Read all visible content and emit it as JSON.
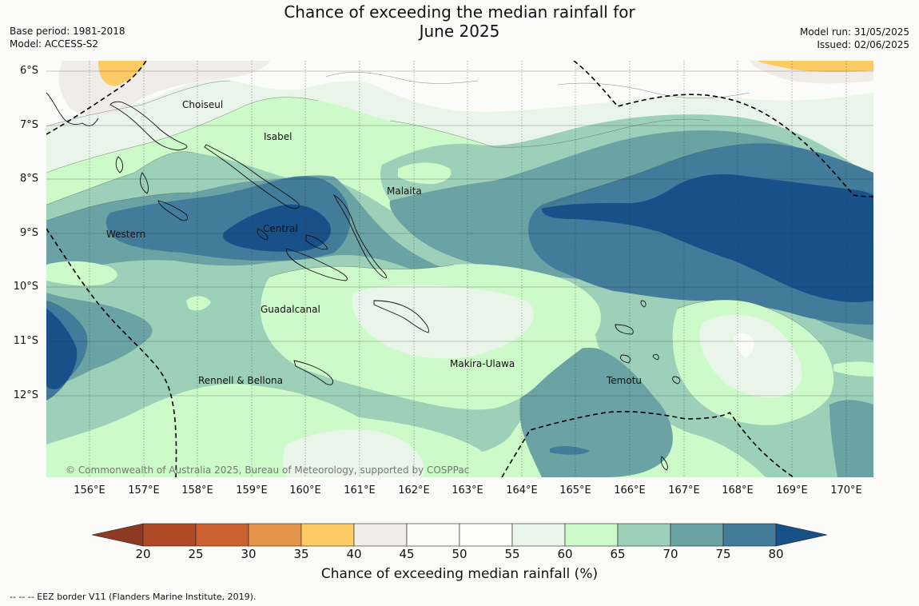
{
  "title": {
    "line1": "Chance of exceeding the median rainfall for",
    "line2": "June 2025"
  },
  "meta_left": {
    "base_period": "Base period: 1981-2018",
    "model": "Model: ACCESS-S2"
  },
  "meta_right": {
    "model_run": "Model run: 31/05/2025",
    "issued": "Issued: 02/06/2025"
  },
  "map": {
    "latitude_labels": [
      "6°S",
      "7°S",
      "8°S",
      "9°S",
      "10°S",
      "11°S",
      "12°S"
    ],
    "longitude_labels": [
      "156°E",
      "157°E",
      "158°E",
      "159°E",
      "160°E",
      "161°E",
      "162°E",
      "163°E",
      "164°E",
      "165°E",
      "166°E",
      "167°E",
      "168°E",
      "169°E",
      "170°E"
    ],
    "places": [
      "Choiseul",
      "Isabel",
      "Malaita",
      "Western",
      "Central",
      "Guadalcanal",
      "Makira-Ulawa",
      "Rennell & Bellona",
      "Temotu"
    ],
    "copyright": "© Commonwealth of Australia 2025, Bureau of Meteorology, supported by COSPPac"
  },
  "legend": {
    "title": "Chance of exceeding median rainfall (%)",
    "ticks": [
      "20",
      "25",
      "30",
      "35",
      "40",
      "45",
      "50",
      "55",
      "60",
      "65",
      "70",
      "75",
      "80"
    ],
    "colors": {
      "below_20": "#8e3a22",
      "c20_25": "#b04a26",
      "c25_30": "#cc6230",
      "c30_35": "#e49448",
      "c35_40": "#fdcb63",
      "c40_45": "#f0ede8",
      "c45_50": "#fbfcfa",
      "c50_55": "#fdfefb",
      "c55_60": "#eaf5ea",
      "c60_65": "#ccfac8",
      "c65_70": "#9dd0b8",
      "c70_75": "#6ba2a3",
      "c75_80": "#437b9a",
      "above_80": "#18518a"
    }
  },
  "eez_note": "--  --  -- EEZ border V11 (Flanders Marine Institute, 2019)."
}
